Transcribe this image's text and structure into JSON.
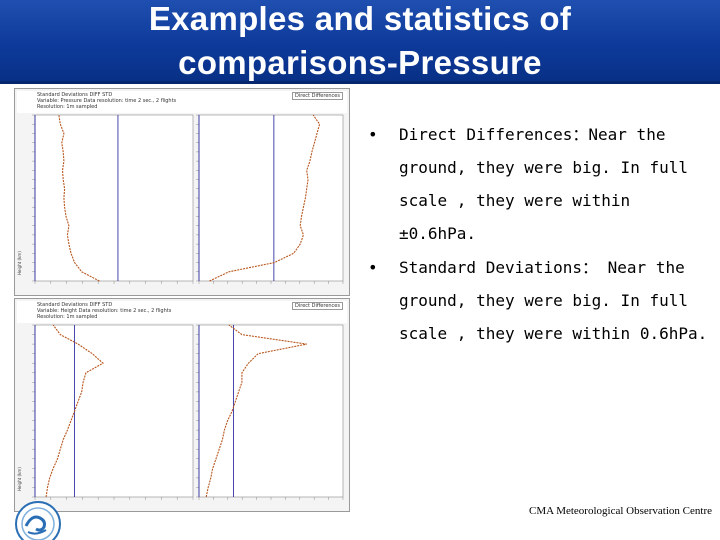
{
  "title": {
    "line1": "Examples and statistics of",
    "line2": "comparisons-Pressure"
  },
  "bullets": [
    {
      "marker": "•",
      "text": "Direct  Differences：Near the\nground, they were big. In full\nscale , they were within\n±0.6hPa."
    },
    {
      "marker": "•",
      "text": "Standard Deviations： Near the\nground, they were big. In full\nscale , they were within 0.6hPa."
    }
  ],
  "footer": "CMA  Meteorological Observation Centre",
  "panels": [
    {
      "header": [
        "Standard Deviations    DIFF   STD",
        "Variable: Pressure  Data resolution: time 2 sec., 2 flights",
        "Resolution: 1m sampled"
      ],
      "tag": "Direct Differences",
      "axis_label": "Height (km)",
      "chart_data": {
        "type": "line",
        "sub_panels": 2,
        "y": [
          0,
          1,
          2,
          3,
          4,
          5,
          6,
          7,
          8,
          9,
          10,
          11,
          12,
          13,
          14,
          15,
          16,
          17,
          18
        ],
        "series": [
          {
            "panel": 0,
            "values": [
              0.85,
              0.6,
              0.5,
              0.45,
              0.42,
              0.4,
              0.42,
              0.38,
              0.36,
              0.35,
              0.36,
              0.34,
              0.33,
              0.35,
              0.34,
              0.32,
              0.35,
              0.3,
              0.28
            ]
          },
          {
            "panel": 1,
            "values": [
              0.1,
              0.4,
              1.1,
              1.4,
              1.5,
              1.55,
              1.5,
              1.52,
              1.55,
              1.58,
              1.6,
              1.62,
              1.6,
              1.65,
              1.68,
              1.72,
              1.76,
              1.8,
              1.7
            ]
          }
        ]
      }
    },
    {
      "header": [
        "Standard Deviations    DIFF   STD",
        "Variable: Height  Data resolution: time 2 sec., 2 flights",
        "Resolution: 1m sampled"
      ],
      "tag": "Direct Differences",
      "axis_label": "Height (km)",
      "chart_data": {
        "type": "line",
        "sub_panels": 2,
        "y": [
          0,
          1,
          2,
          3,
          4,
          5,
          6,
          7,
          8,
          9,
          10,
          11,
          12,
          13,
          14,
          15,
          16,
          17,
          18
        ],
        "series": [
          {
            "panel": 0,
            "values": [
              0.1,
              0.12,
              0.15,
              0.2,
              0.26,
              0.3,
              0.34,
              0.4,
              0.45,
              0.5,
              0.55,
              0.6,
              0.62,
              0.66,
              0.9,
              0.75,
              0.55,
              0.3,
              0.2
            ]
          },
          {
            "panel": 1,
            "values": [
              0.05,
              0.08,
              0.12,
              0.15,
              0.2,
              0.25,
              0.3,
              0.33,
              0.38,
              0.45,
              0.5,
              0.55,
              0.6,
              0.6,
              0.7,
              0.85,
              1.6,
              0.6,
              0.4
            ]
          }
        ]
      }
    }
  ]
}
